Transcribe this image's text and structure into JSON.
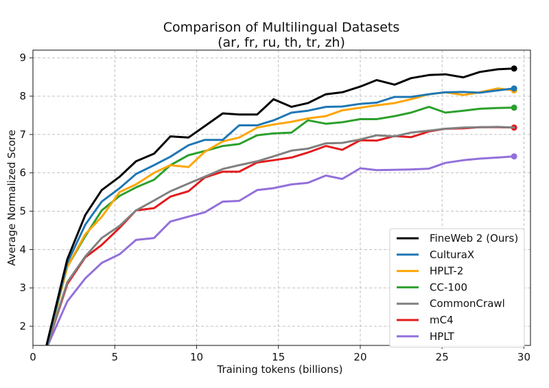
{
  "chart_data": {
    "type": "line",
    "title": "Comparison of Multilingual Datasets",
    "subtitle": "(ar, fr, ru, th, tr, zh)",
    "xlabel": "Training tokens (billions)",
    "ylabel": "Average Normalized Score",
    "xlim": [
      0,
      30.4
    ],
    "ylim": [
      1.5,
      9.2
    ],
    "xticks": [
      0,
      5,
      10,
      15,
      20,
      25,
      30
    ],
    "yticks": [
      2,
      3,
      4,
      5,
      6,
      7,
      8,
      9
    ],
    "grid": true,
    "legend_position": "lower-right",
    "series": [
      {
        "name": "FineWeb 2 (Ours)",
        "color": "#000000",
        "x": [
          0.8,
          2.1,
          3.2,
          4.2,
          5.3,
          6.3,
          7.4,
          8.4,
          9.5,
          10.5,
          11.6,
          12.6,
          13.7,
          14.7,
          15.8,
          16.8,
          17.9,
          18.9,
          20.0,
          21.0,
          22.1,
          23.1,
          24.2,
          25.2,
          26.3,
          27.3,
          28.4,
          29.4
        ],
        "y": [
          1.45,
          3.75,
          4.9,
          5.55,
          5.9,
          6.3,
          6.5,
          6.95,
          6.92,
          7.22,
          7.55,
          7.52,
          7.52,
          7.92,
          7.72,
          7.82,
          8.05,
          8.1,
          8.25,
          8.42,
          8.3,
          8.47,
          8.55,
          8.57,
          8.49,
          8.63,
          8.7,
          8.72
        ],
        "endpoint": true
      },
      {
        "name": "CulturaX",
        "color": "#1f77b4",
        "x": [
          0.8,
          2.1,
          3.2,
          4.2,
          5.3,
          6.3,
          7.4,
          8.4,
          9.5,
          10.5,
          11.6,
          12.6,
          13.7,
          14.7,
          15.8,
          16.8,
          17.9,
          18.9,
          20.0,
          21.0,
          22.1,
          23.1,
          24.2,
          25.2,
          26.3,
          27.3,
          28.4,
          29.4
        ],
        "y": [
          1.4,
          3.65,
          4.65,
          5.25,
          5.6,
          5.97,
          6.2,
          6.42,
          6.72,
          6.86,
          6.86,
          7.24,
          7.24,
          7.37,
          7.57,
          7.62,
          7.72,
          7.73,
          7.8,
          7.83,
          7.98,
          7.98,
          8.05,
          8.1,
          8.11,
          8.09,
          8.15,
          8.2
        ],
        "endpoint": true
      },
      {
        "name": "HPLT-2",
        "color": "#ffa500",
        "x": [
          0.8,
          2.1,
          3.2,
          4.2,
          5.3,
          6.3,
          7.4,
          8.4,
          9.5,
          10.5,
          11.6,
          12.6,
          13.7,
          14.7,
          15.8,
          16.8,
          17.9,
          18.9,
          20.0,
          21.0,
          22.1,
          23.1,
          24.2,
          25.2,
          26.3,
          27.3,
          28.4,
          29.4
        ],
        "y": [
          1.4,
          3.55,
          4.4,
          4.85,
          5.5,
          5.7,
          6.0,
          6.2,
          6.15,
          6.55,
          6.82,
          6.92,
          7.18,
          7.26,
          7.33,
          7.42,
          7.48,
          7.63,
          7.7,
          7.76,
          7.82,
          7.92,
          8.05,
          8.1,
          8.03,
          8.1,
          8.2,
          8.15
        ],
        "endpoint": true
      },
      {
        "name": "CC-100",
        "color": "#2ca02c",
        "x": [
          0.8,
          2.1,
          3.2,
          4.2,
          5.3,
          6.3,
          7.4,
          8.4,
          9.5,
          10.5,
          11.6,
          12.6,
          13.7,
          14.7,
          15.8,
          16.8,
          17.9,
          18.9,
          20.0,
          21.0,
          22.1,
          23.1,
          24.2,
          25.2,
          26.3,
          27.3,
          28.4,
          29.4
        ],
        "y": [
          1.4,
          3.55,
          4.35,
          5.02,
          5.4,
          5.62,
          5.82,
          6.2,
          6.46,
          6.57,
          6.7,
          6.75,
          6.98,
          7.03,
          7.05,
          7.37,
          7.28,
          7.32,
          7.4,
          7.4,
          7.48,
          7.57,
          7.72,
          7.57,
          7.62,
          7.67,
          7.69,
          7.7
        ],
        "endpoint": true
      },
      {
        "name": "CommonCrawl",
        "color": "#808080",
        "x": [
          0.8,
          2.1,
          3.2,
          4.2,
          5.3,
          6.3,
          7.4,
          8.4,
          9.5,
          10.5,
          11.6,
          12.6,
          13.7,
          14.7,
          15.8,
          16.8,
          17.9,
          18.9,
          20.0,
          21.0,
          22.1,
          23.1,
          24.2,
          25.2,
          26.3,
          27.3,
          28.4,
          29.4
        ],
        "y": [
          1.4,
          3.15,
          3.82,
          4.3,
          4.62,
          5.02,
          5.28,
          5.52,
          5.72,
          5.9,
          6.1,
          6.2,
          6.3,
          6.43,
          6.58,
          6.63,
          6.77,
          6.78,
          6.87,
          6.98,
          6.95,
          7.05,
          7.1,
          7.15,
          7.18,
          7.19,
          7.2,
          7.18
        ],
        "endpoint": false
      },
      {
        "name": "mC4",
        "color": "#e31a1c",
        "x": [
          0.8,
          2.1,
          3.2,
          4.2,
          5.3,
          6.3,
          7.4,
          8.4,
          9.5,
          10.5,
          11.6,
          12.6,
          13.7,
          14.7,
          15.8,
          16.8,
          17.9,
          18.9,
          20.0,
          21.0,
          22.1,
          23.1,
          24.2,
          25.2,
          26.3,
          27.3,
          28.4,
          29.4
        ],
        "y": [
          1.4,
          3.1,
          3.8,
          4.12,
          4.57,
          5.02,
          5.08,
          5.38,
          5.52,
          5.88,
          6.03,
          6.03,
          6.27,
          6.33,
          6.4,
          6.53,
          6.7,
          6.6,
          6.85,
          6.84,
          6.96,
          6.93,
          7.08,
          7.15,
          7.16,
          7.19,
          7.19,
          7.18
        ],
        "endpoint": true
      },
      {
        "name": "HPLT",
        "color": "#9370db",
        "x": [
          0.8,
          2.1,
          3.2,
          4.2,
          5.3,
          6.3,
          7.4,
          8.4,
          9.5,
          10.5,
          11.6,
          12.6,
          13.7,
          14.7,
          15.8,
          16.8,
          17.9,
          18.9,
          20.0,
          21.0,
          22.1,
          23.1,
          24.2,
          25.2,
          26.3,
          27.3,
          28.4,
          29.4
        ],
        "y": [
          1.4,
          2.65,
          3.25,
          3.65,
          3.88,
          4.25,
          4.3,
          4.73,
          4.86,
          4.97,
          5.25,
          5.27,
          5.55,
          5.6,
          5.7,
          5.74,
          5.93,
          5.84,
          6.12,
          6.07,
          6.08,
          6.09,
          6.11,
          6.26,
          6.33,
          6.37,
          6.4,
          6.43
        ],
        "endpoint": true
      }
    ]
  }
}
